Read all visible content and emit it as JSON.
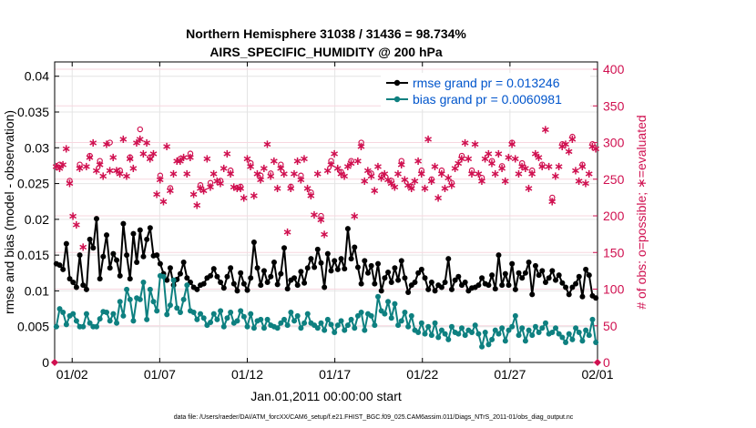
{
  "chart_data": {
    "type": "line",
    "title": "Northern Hemisphere 31038 / 31436 = 98.734%",
    "subtitle": "AIRS_SPECIFIC_HUMIDITY @ 200 hPa",
    "xlabel": "Jan.01,2011 00:00:00 start",
    "ylabel": "rmse and bias (model - observation)",
    "ylabel_right": "# of obs: o=possible; ∗=evaluated",
    "footer": "data file: /Users/raeder/DAI/ATM_forcXX/CAM6_setup/f.e21.FHIST_BGC.f09_025.CAM6assim.011/Diags_NTrS_2011-01/obs_diag_output.nc",
    "xlim": [
      0,
      31
    ],
    "ylim": [
      0,
      0.042
    ],
    "ylim_right": [
      0,
      410
    ],
    "x_ticks": [
      1,
      6,
      11,
      16,
      21,
      26,
      31
    ],
    "x_tick_labels": [
      "01/02",
      "01/07",
      "01/12",
      "01/17",
      "01/22",
      "01/27",
      "02/01"
    ],
    "y_ticks": [
      0,
      0.005,
      0.01,
      0.015,
      0.02,
      0.025,
      0.03,
      0.035,
      0.04
    ],
    "y_tick_labels": [
      "0",
      "0.005",
      "0.01",
      "0.015",
      "0.02",
      "0.025",
      "0.03",
      "0.035",
      "0.04"
    ],
    "y_right_ticks": [
      0,
      50,
      100,
      150,
      200,
      250,
      300,
      350,
      400
    ],
    "y_right_tick_labels": [
      "0",
      "50",
      "100",
      "150",
      "200",
      "250",
      "300",
      "350",
      "400"
    ],
    "grid": true,
    "legend_position": "top-right",
    "series": [
      {
        "name": "rmse grand pr = 0.013246",
        "color": "#000000",
        "values": [
          0.0138,
          0.0136,
          0.013,
          0.0166,
          0.0117,
          0.0112,
          0.0105,
          0.015,
          0.0108,
          0.0102,
          0.0172,
          0.016,
          0.0201,
          0.0117,
          0.0148,
          0.0178,
          0.0132,
          0.0152,
          0.0143,
          0.0121,
          0.0194,
          0.015,
          0.0117,
          0.018,
          0.014,
          0.0185,
          0.0148,
          0.0172,
          0.0188,
          0.0149,
          0.015,
          0.0138,
          0.0124,
          0.0115,
          0.0132,
          0.0108,
          0.0116,
          0.0124,
          0.014,
          0.0118,
          0.0112,
          0.0105,
          0.0102,
          0.0108,
          0.011,
          0.0118,
          0.0121,
          0.0131,
          0.012,
          0.0112,
          0.0104,
          0.012,
          0.0132,
          0.011,
          0.01,
          0.0125,
          0.011,
          0.0101,
          0.0118,
          0.0168,
          0.0132,
          0.0108,
          0.0128,
          0.0112,
          0.012,
          0.014,
          0.0109,
          0.0124,
          0.016,
          0.0103,
          0.0115,
          0.0118,
          0.0108,
          0.0127,
          0.0111,
          0.0132,
          0.0145,
          0.0133,
          0.0158,
          0.0139,
          0.0105,
          0.0152,
          0.0128,
          0.0142,
          0.013,
          0.0145,
          0.0131,
          0.0187,
          0.0145,
          0.0161,
          0.0133,
          0.011,
          0.0142,
          0.0125,
          0.0135,
          0.011,
          0.0138,
          0.01,
          0.0118,
          0.0126,
          0.0112,
          0.0132,
          0.0115,
          0.0142,
          0.0118,
          0.0098,
          0.0108,
          0.0112,
          0.0125,
          0.013,
          0.0118,
          0.0102,
          0.0112,
          0.01,
          0.0108,
          0.0105,
          0.0112,
          0.0145,
          0.0102,
          0.0115,
          0.012,
          0.0108,
          0.0112,
          0.01,
          0.0104,
          0.0105,
          0.0108,
          0.0118,
          0.011,
          0.0108,
          0.0122,
          0.0103,
          0.015,
          0.0108,
          0.0124,
          0.0108,
          0.0138,
          0.0102,
          0.0125,
          0.0118,
          0.0125,
          0.014,
          0.0095,
          0.0135,
          0.0122,
          0.0128,
          0.0112,
          0.0118,
          0.0128,
          0.0115,
          0.0122,
          0.0111,
          0.0105,
          0.0095,
          0.0105,
          0.011,
          0.012,
          0.0092,
          0.013,
          0.0122,
          0.0093,
          0.009
        ]
      },
      {
        "name": "bias grand pr = 0.0060981",
        "color": "#0e8080",
        "values": [
          0.005,
          0.0075,
          0.007,
          0.0053,
          0.0065,
          0.0068,
          0.0058,
          0.005,
          0.005,
          0.0068,
          0.0055,
          0.005,
          0.005,
          0.0061,
          0.0071,
          0.007,
          0.0058,
          0.0068,
          0.0055,
          0.0085,
          0.0065,
          0.0102,
          0.0088,
          0.0058,
          0.009,
          0.0088,
          0.0112,
          0.006,
          0.0102,
          0.0085,
          0.0072,
          0.0121,
          0.012,
          0.0067,
          0.008,
          0.0115,
          0.0076,
          0.007,
          0.0088,
          0.0108,
          0.0072,
          0.007,
          0.006,
          0.0068,
          0.0062,
          0.0052,
          0.0056,
          0.0068,
          0.006,
          0.0072,
          0.005,
          0.0062,
          0.007,
          0.0055,
          0.0058,
          0.0072,
          0.0064,
          0.005,
          0.0068,
          0.0048,
          0.0058,
          0.006,
          0.0048,
          0.006,
          0.0052,
          0.005,
          0.0048,
          0.0055,
          0.006,
          0.0052,
          0.007,
          0.0058,
          0.0065,
          0.0048,
          0.0055,
          0.0068,
          0.0055,
          0.0052,
          0.0048,
          0.0055,
          0.0045,
          0.006,
          0.0053,
          0.0042,
          0.0052,
          0.0058,
          0.0045,
          0.0052,
          0.006,
          0.0048,
          0.0065,
          0.007,
          0.0045,
          0.0068,
          0.0065,
          0.0052,
          0.0092,
          0.0072,
          0.0068,
          0.0085,
          0.0062,
          0.0082,
          0.0052,
          0.0058,
          0.007,
          0.005,
          0.0065,
          0.0045,
          0.0042,
          0.0055,
          0.004,
          0.005,
          0.0038,
          0.0055,
          0.0035,
          0.0045,
          0.004,
          0.0032,
          0.005,
          0.0042,
          0.004,
          0.0048,
          0.0038,
          0.0045,
          0.0042,
          0.0052,
          0.004,
          0.0022,
          0.0042,
          0.0025,
          0.0032,
          0.0045,
          0.004,
          0.0048,
          0.003,
          0.0045,
          0.005,
          0.0065,
          0.0038,
          0.0048,
          0.003,
          0.0045,
          0.0038,
          0.005,
          0.0042,
          0.0048,
          0.0055,
          0.004,
          0.0042,
          0.0048,
          0.004,
          0.0035,
          0.0028,
          0.004,
          0.0032,
          0.0048,
          0.0042,
          0.003,
          0.0045,
          0.0038,
          0.006,
          0.0028
        ]
      }
    ],
    "obs_count": {
      "color": "#d01050",
      "possible": [
        270,
        270,
        275,
        295,
        248,
        205,
        190,
        270,
        265,
        272,
        282,
        305,
        268,
        275,
        260,
        300,
        300,
        285,
        265,
        262,
        318,
        260,
        280,
        268,
        305,
        318,
        290,
        308,
        280,
        290,
        232,
        255,
        222,
        300,
        238,
        260,
        278,
        278,
        285,
        262,
        285,
        232,
        218,
        242,
        238,
        280,
        245,
        262,
        252,
        248,
        268,
        290,
        262,
        245,
        242,
        240,
        228,
        282,
        272,
        230,
        260,
        255,
        268,
        300,
        258,
        278,
        242,
        270,
        262,
        180,
        240,
        262,
        280,
        255,
        282,
        240,
        232,
        205,
        262,
        200,
        178,
        265,
        275,
        290,
        270,
        260,
        258,
        270,
        275,
        205,
        278,
        300,
        250,
        265,
        258,
        238,
        270,
        255,
        262,
        255,
        248,
        242,
        262,
        275,
        255,
        245,
        240,
        250,
        280,
        262,
        240,
        308,
        250,
        270,
        228,
        262,
        240,
        255,
        245,
        268,
        275,
        282,
        305,
        280,
        262,
        300,
        262,
        252,
        280,
        290,
        275,
        260,
        290,
        268,
        252,
        285,
        300,
        280,
        262,
        272,
        268,
        240,
        262,
        288,
        285,
        270,
        320,
        272,
        225,
        258,
        270,
        298,
        300,
        292,
        308,
        265,
        252,
        270,
        248,
        262,
        298,
        295
      ],
      "evaluated": [
        268,
        265,
        270,
        292,
        245,
        200,
        188,
        265,
        158,
        268,
        280,
        300,
        262,
        270,
        255,
        298,
        262,
        280,
        262,
        258,
        305,
        255,
        278,
        265,
        300,
        305,
        285,
        300,
        278,
        285,
        230,
        250,
        220,
        295,
        235,
        258,
        275,
        275,
        280,
        258,
        280,
        230,
        215,
        238,
        235,
        278,
        240,
        258,
        248,
        245,
        265,
        285,
        258,
        240,
        238,
        238,
        225,
        278,
        268,
        228,
        258,
        250,
        265,
        298,
        255,
        275,
        238,
        265,
        258,
        178,
        238,
        258,
        275,
        250,
        278,
        238,
        228,
        202,
        258,
        195,
        175,
        262,
        270,
        285,
        265,
        258,
        255,
        268,
        272,
        200,
        275,
        295,
        248,
        262,
        255,
        235,
        268,
        252,
        258,
        250,
        245,
        240,
        258,
        270,
        250,
        242,
        238,
        248,
        275,
        258,
        238,
        305,
        248,
        268,
        225,
        258,
        238,
        252,
        242,
        265,
        272,
        278,
        300,
        278,
        258,
        298,
        258,
        248,
        278,
        285,
        272,
        258,
        285,
        265,
        248,
        280,
        298,
        278,
        258,
        268,
        265,
        238,
        258,
        285,
        280,
        268,
        318,
        268,
        220,
        255,
        268,
        295,
        298,
        288,
        305,
        262,
        248,
        268,
        245,
        258,
        295,
        292
      ]
    }
  }
}
